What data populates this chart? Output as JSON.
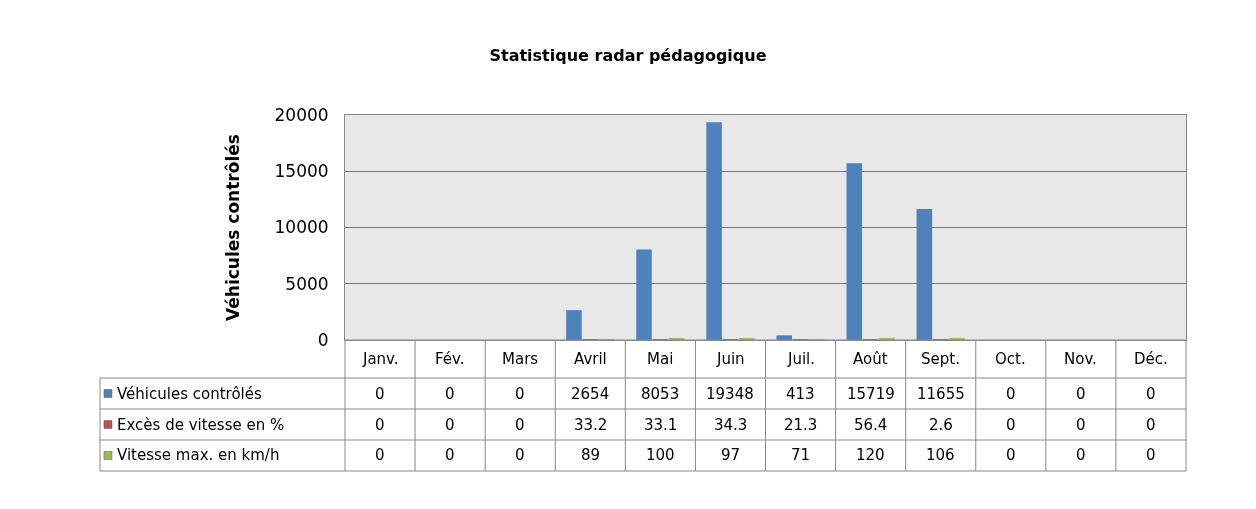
{
  "chart_data": {
    "type": "bar",
    "title": "Statistique radar pédagogique",
    "ylabel": "Véhicules contrôlés",
    "categories": [
      "Janv.",
      "Fév.",
      "Mars",
      "Avril",
      "Mai",
      "Juin",
      "Juil.",
      "Août",
      "Sept.",
      "Oct.",
      "Nov.",
      "Déc."
    ],
    "series": [
      {
        "name": "Véhicules contrôlés",
        "color": "#4f81bd",
        "values": [
          0,
          0,
          0,
          2654,
          8053,
          19348,
          413,
          15719,
          11655,
          0,
          0,
          0
        ]
      },
      {
        "name": "Excès de vitesse en %",
        "color": "#c0504d",
        "values": [
          0,
          0,
          0,
          33.2,
          33.1,
          34.3,
          21.3,
          56.4,
          2.6,
          0,
          0,
          0
        ]
      },
      {
        "name": "Vitesse max. en km/h",
        "color": "#9bbb59",
        "values": [
          0,
          0,
          0,
          89,
          100,
          97,
          71,
          120,
          106,
          0,
          0,
          0
        ]
      }
    ],
    "ylim": [
      0,
      20000
    ],
    "yticks": [
      0,
      5000,
      10000,
      15000,
      20000
    ],
    "grid": "y",
    "data_labels": true,
    "legend": "bottom"
  }
}
